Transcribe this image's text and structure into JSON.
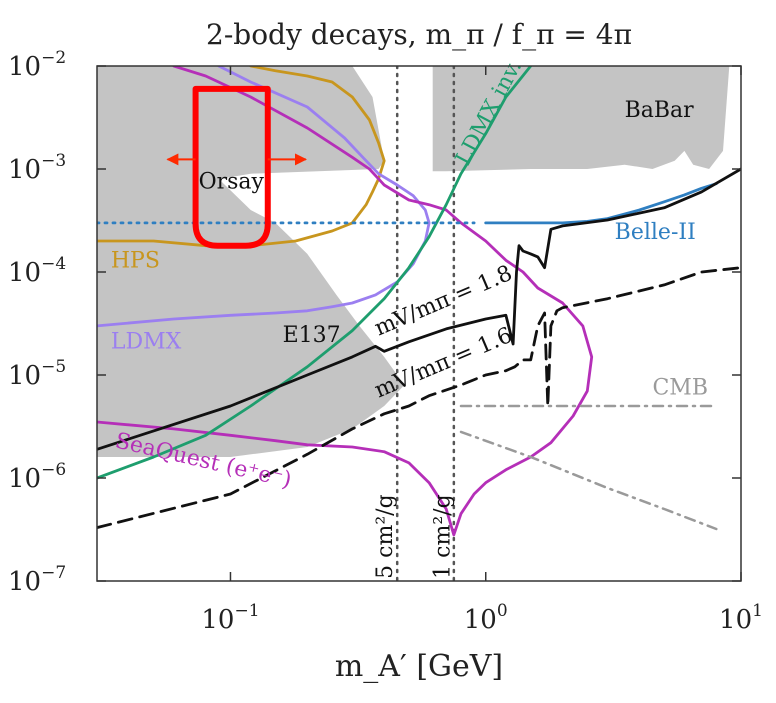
{
  "chart_data": {
    "type": "line",
    "title": "2-body decays, m_π / f_π = 4π",
    "xlabel": "m_A′ [GeV]",
    "ylabel": "",
    "xscale": "log",
    "yscale": "log",
    "xlim": [
      0.03,
      10
    ],
    "ylim": [
      1e-07,
      0.01
    ],
    "x_ticks": [
      {
        "value": 0.1,
        "base": "10",
        "exp": "−1"
      },
      {
        "value": 1,
        "base": "10",
        "exp": "0"
      },
      {
        "value": 10,
        "base": "10",
        "exp": "1"
      }
    ],
    "y_ticks": [
      {
        "value": 1e-07,
        "base": "10",
        "exp": "−7"
      },
      {
        "value": 1e-06,
        "base": "10",
        "exp": "−6"
      },
      {
        "value": 1e-05,
        "base": "10",
        "exp": "−5"
      },
      {
        "value": 0.0001,
        "base": "10",
        "exp": "−4"
      },
      {
        "value": 0.001,
        "base": "10",
        "exp": "−3"
      },
      {
        "value": 0.01,
        "base": "10",
        "exp": "−2"
      }
    ],
    "colors": {
      "excluded": "#c4c4c4",
      "hps": "#c8961e",
      "ldmx": "#9b7ff0",
      "seaquest": "#b52fb8",
      "ldmx_inv": "#1e9e6e",
      "belle": "#2f7fc1",
      "relic": "#111111",
      "cmb": "#9a9a9a",
      "highlight": "#ff0000"
    },
    "shaded_regions": [
      {
        "name": "Orsay / E137",
        "points": [
          [
            0.03,
            0.01
          ],
          [
            0.3,
            0.01
          ],
          [
            0.36,
            0.005
          ],
          [
            0.4,
            0.0012
          ],
          [
            0.38,
            0.001
          ],
          [
            0.12,
            0.0009
          ],
          [
            0.09,
            0.0008
          ],
          [
            0.12,
            0.0004
          ],
          [
            0.15,
            0.0003
          ],
          [
            0.2,
            0.00015
          ],
          [
            0.26,
            6e-05
          ],
          [
            0.32,
            3e-05
          ],
          [
            0.4,
            1.5e-05
          ],
          [
            0.48,
            8e-06
          ],
          [
            0.4,
            5e-06
          ],
          [
            0.3,
            3e-06
          ],
          [
            0.2,
            2e-06
          ],
          [
            0.1,
            1.6e-06
          ],
          [
            0.03,
            1.6e-06
          ]
        ]
      },
      {
        "name": "BaBar",
        "points": [
          [
            0.62,
            0.01
          ],
          [
            9,
            0.01
          ],
          [
            8.5,
            0.0015
          ],
          [
            7.5,
            0.001
          ],
          [
            6.5,
            0.0011
          ],
          [
            6,
            0.0015
          ],
          [
            5.5,
            0.0012
          ],
          [
            4.5,
            0.001
          ],
          [
            3.5,
            0.0011
          ],
          [
            2.5,
            0.001
          ],
          [
            1.5,
            0.001
          ],
          [
            0.7,
            0.00095
          ],
          [
            0.62,
            0.00095
          ]
        ]
      }
    ],
    "series": [
      {
        "name": "HPS",
        "style": "solid",
        "color_key": "hps",
        "x": [
          0.03,
          0.05,
          0.08,
          0.12,
          0.18,
          0.25,
          0.3,
          0.34,
          0.36,
          0.38,
          0.4,
          0.38,
          0.35,
          0.3,
          0.25,
          0.2,
          0.15,
          0.12
        ],
        "y": [
          0.0002,
          0.0002,
          0.00018,
          0.00018,
          0.0002,
          0.00025,
          0.0003,
          0.00045,
          0.0006,
          0.0008,
          0.0012,
          0.0018,
          0.003,
          0.005,
          0.007,
          0.008,
          0.009,
          0.01
        ]
      },
      {
        "name": "LDMX",
        "style": "solid",
        "color_key": "ldmx",
        "x": [
          0.03,
          0.06,
          0.1,
          0.15,
          0.2,
          0.25,
          0.3,
          0.37,
          0.45,
          0.52,
          0.58,
          0.6,
          0.58,
          0.52,
          0.45,
          0.38,
          0.33,
          0.28,
          0.2,
          0.12,
          0.09
        ],
        "y": [
          3e-05,
          3.5e-05,
          3.8e-05,
          4e-05,
          4.2e-05,
          4.6e-05,
          5e-05,
          6e-05,
          8e-05,
          0.00012,
          0.0002,
          0.0003,
          0.0004,
          0.00055,
          0.0007,
          0.0009,
          0.0013,
          0.002,
          0.004,
          0.007,
          0.01
        ]
      },
      {
        "name": "SeaQuest (e⁺e⁻)",
        "style": "solid",
        "color_key": "seaquest",
        "x": [
          0.03,
          0.06,
          0.1,
          0.15,
          0.2,
          0.3,
          0.4,
          0.5,
          0.6,
          0.7,
          0.75,
          0.8,
          0.9,
          1.0,
          1.2,
          1.5,
          1.8,
          2.2,
          2.5,
          2.6,
          2.4,
          2.0,
          1.6,
          1.4,
          1.2,
          1.0,
          0.8,
          0.7,
          0.6,
          0.5,
          0.4,
          0.35,
          0.3,
          0.2,
          0.12,
          0.08,
          0.06
        ],
        "y": [
          3.5e-06,
          3e-06,
          2.6e-06,
          2.3e-06,
          2.1e-06,
          2e-06,
          1.8e-06,
          1.4e-06,
          9e-07,
          5e-07,
          2.8e-07,
          4.5e-07,
          7e-07,
          9e-07,
          1.2e-06,
          1.6e-06,
          2.2e-06,
          4e-06,
          7e-06,
          1.5e-05,
          3e-05,
          5e-05,
          7e-05,
          0.0001,
          0.00013,
          0.0002,
          0.0003,
          0.0004,
          0.00045,
          0.0005,
          0.0007,
          0.001,
          0.0013,
          0.0025,
          0.005,
          0.008,
          0.01
        ]
      },
      {
        "name": "LDMX inv.",
        "style": "solid",
        "color_key": "ldmx_inv",
        "x": [
          0.03,
          0.05,
          0.08,
          0.12,
          0.2,
          0.3,
          0.4,
          0.5,
          0.6,
          0.7,
          0.8,
          1.0,
          1.2,
          1.5
        ],
        "y": [
          1e-06,
          1.6e-06,
          2.6e-06,
          5e-06,
          1.2e-05,
          2.7e-05,
          5.5e-05,
          0.00011,
          0.00022,
          0.00045,
          0.0009,
          0.0022,
          0.005,
          0.01
        ]
      },
      {
        "name": "Belle-II",
        "style": "solid",
        "color_key": "belle",
        "x": [
          1.0,
          1.5,
          2.0,
          2.5,
          3.0,
          4.0,
          5.0,
          6.0,
          7.0,
          8.0
        ],
        "y": [
          0.0003,
          0.0003,
          0.0003,
          0.00031,
          0.00033,
          0.0004,
          0.00048,
          0.00056,
          0.00065,
          0.00072
        ]
      },
      {
        "name": "HPS / Belle-II displaced",
        "style": "dotted",
        "color_key": "belle",
        "x": [
          0.03,
          0.1,
          0.3,
          0.6,
          0.9
        ],
        "y": [
          0.0003,
          0.0003,
          0.0003,
          0.0003,
          0.0003
        ]
      },
      {
        "name": "mV/mπ = 1.8",
        "style": "solid",
        "color_key": "relic",
        "x": [
          0.03,
          0.1,
          0.2,
          0.3,
          0.37,
          0.4,
          0.5,
          0.7,
          1.0,
          1.2,
          1.28,
          1.32,
          1.35,
          1.4,
          1.5,
          1.6,
          1.7,
          1.8,
          2.0,
          3.0,
          5.0,
          7.0,
          10.0
        ],
        "y": [
          1.9e-06,
          5e-06,
          1e-05,
          1.5e-05,
          1.9e-05,
          1.7e-05,
          2.1e-05,
          2.8e-05,
          3.5e-05,
          3.8e-05,
          2e-05,
          0.0001,
          0.00018,
          0.00016,
          0.00015,
          0.00014,
          0.00011,
          0.00026,
          0.00028,
          0.00032,
          0.00042,
          0.0006,
          0.001
        ]
      },
      {
        "name": "mV/mπ = 1.6",
        "style": "dashed",
        "color_key": "relic",
        "x": [
          0.03,
          0.1,
          0.2,
          0.3,
          0.4,
          0.5,
          0.6,
          0.8,
          1.0,
          1.2,
          1.3,
          1.4,
          1.5,
          1.6,
          1.7,
          1.75,
          1.8,
          1.9,
          2.0,
          3.0,
          5.0,
          7.0,
          10.0
        ],
        "y": [
          3.3e-07,
          7e-07,
          1.7e-06,
          3e-06,
          4.2e-06,
          5e-06,
          6.3e-06,
          8e-06,
          1e-05,
          1.1e-05,
          1.2e-05,
          1.4e-05,
          1.4e-05,
          3e-05,
          4e-05,
          5e-06,
          3e-05,
          4.2e-05,
          4.5e-05,
          5.5e-05,
          7.5e-05,
          0.0001,
          0.00011
        ]
      },
      {
        "name": "CMB",
        "style": "dashdot",
        "color_key": "cmb",
        "x": [
          0.8,
          1.5,
          3,
          5,
          8
        ],
        "y": [
          5e-06,
          5e-06,
          5e-06,
          5e-06,
          5e-06
        ]
      },
      {
        "name": "CMB lower",
        "style": "dashdot",
        "color_key": "cmb",
        "x": [
          0.8,
          1.5,
          3,
          5,
          8
        ],
        "y": [
          2.8e-06,
          1.6e-06,
          8e-07,
          5e-07,
          3.2e-07
        ]
      }
    ],
    "vertical_lines": [
      {
        "x": 0.45,
        "label": "5 cm²/g"
      },
      {
        "x": 0.75,
        "label": "1 cm²/g"
      }
    ],
    "labels": [
      {
        "text": "Orsay",
        "x": 0.075,
        "y": 0.00065,
        "color_key": "relic",
        "rotate": 0
      },
      {
        "text": "BaBar",
        "x": 3.5,
        "y": 0.0032,
        "color_key": "relic",
        "rotate": 0
      },
      {
        "text": "HPS",
        "x": 0.034,
        "y": 0.00011,
        "color_key": "hps",
        "rotate": 0
      },
      {
        "text": "LDMX",
        "x": 0.034,
        "y": 1.8e-05,
        "color_key": "ldmx",
        "rotate": 0
      },
      {
        "text": "E137",
        "x": 0.16,
        "y": 2.1e-05,
        "color_key": "relic",
        "rotate": 0
      },
      {
        "text": "Belle-II",
        "x": 3.2,
        "y": 0.00021,
        "color_key": "belle",
        "rotate": 0
      },
      {
        "text": "CMB",
        "x": 4.5,
        "y": 6.5e-06,
        "color_key": "cmb",
        "rotate": 0
      },
      {
        "text": "LDMX inv.",
        "x": 0.85,
        "y": 0.00105,
        "color_key": "ldmx_inv",
        "rotate": -62
      },
      {
        "text": "mV/mπ = 1.8",
        "x": 0.38,
        "y": 2.4e-05,
        "color_key": "relic",
        "rotate": -23
      },
      {
        "text": "mV/mπ = 1.6",
        "x": 0.38,
        "y": 6e-06,
        "color_key": "relic",
        "rotate": -23
      },
      {
        "text": "SeaQuest (e⁺e⁻)",
        "x": 0.035,
        "y": 2e-06,
        "color_key": "seaquest",
        "rotate": 13
      },
      {
        "text": "5 cm²/g",
        "x": 0.43,
        "y": 1.05e-07,
        "color_key": "relic",
        "rotate": -90
      },
      {
        "text": "1 cm²/g",
        "x": 0.72,
        "y": 1.05e-07,
        "color_key": "relic",
        "rotate": -90
      }
    ],
    "highlight_annotation": {
      "shape": "rounded-rectangle",
      "color_key": "highlight",
      "x_range": [
        0.073,
        0.14
      ],
      "y_range": [
        0.00018,
        0.006
      ],
      "arrows": [
        "left",
        "right"
      ]
    },
    "grid": false,
    "legend": "none"
  }
}
